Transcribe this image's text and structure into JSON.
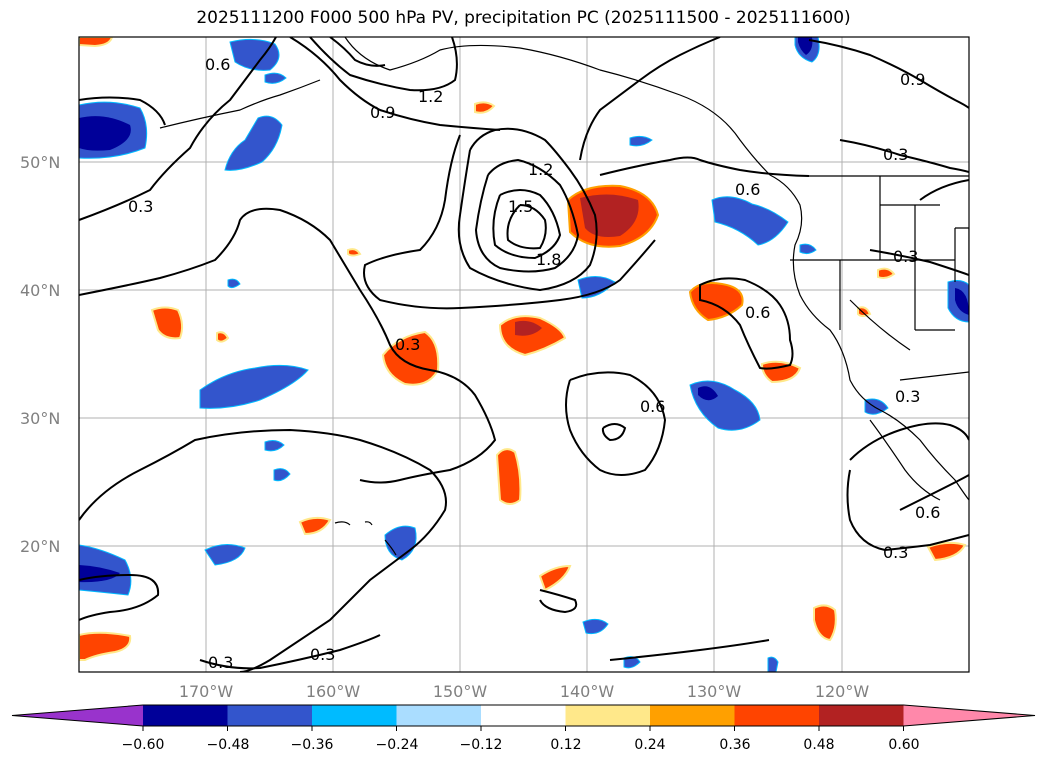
{
  "title": "2025111200 F000 500 hPa PV, precipitation PC (2025111500 - 2025111600)",
  "map": {
    "lat_labels": [
      "50°N",
      "40°N",
      "30°N",
      "20°N"
    ],
    "lon_labels": [
      "170°W",
      "160°W",
      "150°W",
      "140°W",
      "130°W",
      "120°W"
    ],
    "contour_labels": [
      "0.6",
      "0.3",
      "0.9",
      "1.2",
      "1.2",
      "1.5",
      "1.8",
      "0.6",
      "0.9",
      "0.3",
      "0.3",
      "0.3",
      "0.6",
      "0.6",
      "0.3",
      "0.6",
      "0.3",
      "0.3",
      "0.3"
    ]
  },
  "colorbar": {
    "colors": [
      "#9933cc",
      "#000099",
      "#3355cc",
      "#00bbff",
      "#aaddff",
      "#ffffff",
      "#ffe88a",
      "#ffa000",
      "#ff4400",
      "#b22222",
      "#ff88aa"
    ],
    "tick_labels": [
      "−0.60",
      "−0.48",
      "−0.36",
      "−0.24",
      "−0.12",
      "0.12",
      "0.24",
      "0.36",
      "0.48",
      "0.60"
    ]
  }
}
